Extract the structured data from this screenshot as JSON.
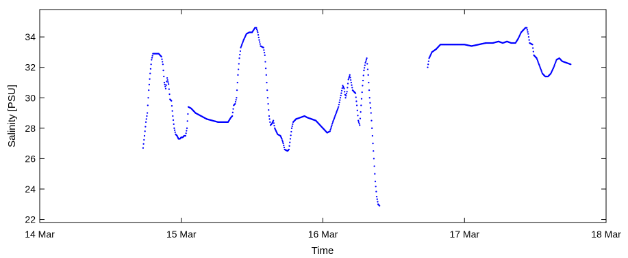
{
  "chart_data": {
    "type": "scatter",
    "title": "",
    "xlabel": "Time",
    "ylabel": "Salinity [PSU]",
    "xlim": [
      0,
      4
    ],
    "ylim": [
      21.8,
      35.8
    ],
    "x_axis_unit": "days since 14 Mar",
    "x_ticks": [
      {
        "value": 0,
        "label": "14 Mar"
      },
      {
        "value": 1,
        "label": "15 Mar"
      },
      {
        "value": 2,
        "label": "16 Mar"
      },
      {
        "value": 3,
        "label": "17 Mar"
      },
      {
        "value": 4,
        "label": "18 Mar"
      }
    ],
    "y_ticks": [
      22,
      24,
      26,
      28,
      30,
      32,
      34
    ],
    "grid": false,
    "marker_color": "#0000ff",
    "series": [
      {
        "name": "",
        "points": [
          [
            0.73,
            26.7
          ],
          [
            0.74,
            27.5
          ],
          [
            0.75,
            28.4
          ],
          [
            0.76,
            29.0
          ],
          [
            0.77,
            30.5
          ],
          [
            0.78,
            31.6
          ],
          [
            0.79,
            32.5
          ],
          [
            0.8,
            32.9
          ],
          [
            0.82,
            32.9
          ],
          [
            0.84,
            32.9
          ],
          [
            0.86,
            32.7
          ],
          [
            0.87,
            32.2
          ],
          [
            0.88,
            31.0
          ],
          [
            0.89,
            30.6
          ],
          [
            0.9,
            31.3
          ],
          [
            0.91,
            30.9
          ],
          [
            0.92,
            29.9
          ],
          [
            0.93,
            29.8
          ],
          [
            0.94,
            28.8
          ],
          [
            0.95,
            28.0
          ],
          [
            0.96,
            27.6
          ],
          [
            0.97,
            27.5
          ],
          [
            0.98,
            27.3
          ],
          [
            0.99,
            27.3
          ],
          [
            1.0,
            27.4
          ],
          [
            1.01,
            27.4
          ],
          [
            1.02,
            27.5
          ],
          [
            1.03,
            27.5
          ],
          [
            1.04,
            28.0
          ],
          [
            1.05,
            29.4
          ],
          [
            1.07,
            29.3
          ],
          [
            1.1,
            29.0
          ],
          [
            1.14,
            28.8
          ],
          [
            1.18,
            28.6
          ],
          [
            1.22,
            28.5
          ],
          [
            1.26,
            28.4
          ],
          [
            1.3,
            28.4
          ],
          [
            1.33,
            28.4
          ],
          [
            1.35,
            28.7
          ],
          [
            1.36,
            28.8
          ],
          [
            1.37,
            29.5
          ],
          [
            1.38,
            29.6
          ],
          [
            1.39,
            30.0
          ],
          [
            1.4,
            31.5
          ],
          [
            1.41,
            32.6
          ],
          [
            1.42,
            33.3
          ],
          [
            1.44,
            33.8
          ],
          [
            1.46,
            34.2
          ],
          [
            1.48,
            34.3
          ],
          [
            1.5,
            34.3
          ],
          [
            1.52,
            34.6
          ],
          [
            1.53,
            34.6
          ],
          [
            1.54,
            34.3
          ],
          [
            1.55,
            33.8
          ],
          [
            1.56,
            33.4
          ],
          [
            1.58,
            33.3
          ],
          [
            1.59,
            32.8
          ],
          [
            1.6,
            31.5
          ],
          [
            1.61,
            30.0
          ],
          [
            1.62,
            28.8
          ],
          [
            1.63,
            28.2
          ],
          [
            1.64,
            28.3
          ],
          [
            1.65,
            28.5
          ],
          [
            1.66,
            28.0
          ],
          [
            1.67,
            27.8
          ],
          [
            1.68,
            27.6
          ],
          [
            1.7,
            27.5
          ],
          [
            1.71,
            27.3
          ],
          [
            1.72,
            27.0
          ],
          [
            1.73,
            26.6
          ],
          [
            1.75,
            26.5
          ],
          [
            1.76,
            26.6
          ],
          [
            1.77,
            27.3
          ],
          [
            1.78,
            28.0
          ],
          [
            1.79,
            28.4
          ],
          [
            1.81,
            28.6
          ],
          [
            1.84,
            28.7
          ],
          [
            1.87,
            28.8
          ],
          [
            1.89,
            28.7
          ],
          [
            1.92,
            28.6
          ],
          [
            1.95,
            28.5
          ],
          [
            1.98,
            28.2
          ],
          [
            2.01,
            27.9
          ],
          [
            2.03,
            27.7
          ],
          [
            2.05,
            27.8
          ],
          [
            2.07,
            28.4
          ],
          [
            2.09,
            28.9
          ],
          [
            2.11,
            29.4
          ],
          [
            2.13,
            30.3
          ],
          [
            2.14,
            30.8
          ],
          [
            2.15,
            30.6
          ],
          [
            2.16,
            30.0
          ],
          [
            2.17,
            30.4
          ],
          [
            2.18,
            31.2
          ],
          [
            2.19,
            31.5
          ],
          [
            2.2,
            31.0
          ],
          [
            2.21,
            30.5
          ],
          [
            2.23,
            30.3
          ],
          [
            2.24,
            29.5
          ],
          [
            2.25,
            28.5
          ],
          [
            2.26,
            28.2
          ],
          [
            2.27,
            29.5
          ],
          [
            2.28,
            30.8
          ],
          [
            2.29,
            31.8
          ],
          [
            2.3,
            32.3
          ],
          [
            2.31,
            32.6
          ],
          [
            2.32,
            31.5
          ],
          [
            2.33,
            30.0
          ],
          [
            2.34,
            29.0
          ],
          [
            2.35,
            27.5
          ],
          [
            2.36,
            26.0
          ],
          [
            2.37,
            24.5
          ],
          [
            2.38,
            23.5
          ],
          [
            2.39,
            23.0
          ],
          [
            2.4,
            22.9
          ],
          [
            2.74,
            32.0
          ],
          [
            2.75,
            32.6
          ],
          [
            2.77,
            33.0
          ],
          [
            2.8,
            33.2
          ],
          [
            2.83,
            33.5
          ],
          [
            2.87,
            33.5
          ],
          [
            2.93,
            33.5
          ],
          [
            3.0,
            33.5
          ],
          [
            3.05,
            33.4
          ],
          [
            3.1,
            33.5
          ],
          [
            3.15,
            33.6
          ],
          [
            3.2,
            33.6
          ],
          [
            3.24,
            33.7
          ],
          [
            3.27,
            33.6
          ],
          [
            3.3,
            33.7
          ],
          [
            3.33,
            33.6
          ],
          [
            3.36,
            33.6
          ],
          [
            3.38,
            33.9
          ],
          [
            3.4,
            34.3
          ],
          [
            3.43,
            34.6
          ],
          [
            3.44,
            34.6
          ],
          [
            3.45,
            34.2
          ],
          [
            3.46,
            33.6
          ],
          [
            3.48,
            33.5
          ],
          [
            3.49,
            32.8
          ],
          [
            3.51,
            32.6
          ],
          [
            3.53,
            32.1
          ],
          [
            3.55,
            31.6
          ],
          [
            3.57,
            31.4
          ],
          [
            3.59,
            31.4
          ],
          [
            3.61,
            31.6
          ],
          [
            3.63,
            32.0
          ],
          [
            3.65,
            32.5
          ],
          [
            3.67,
            32.6
          ],
          [
            3.69,
            32.4
          ],
          [
            3.72,
            32.3
          ],
          [
            3.75,
            32.2
          ]
        ]
      }
    ]
  }
}
